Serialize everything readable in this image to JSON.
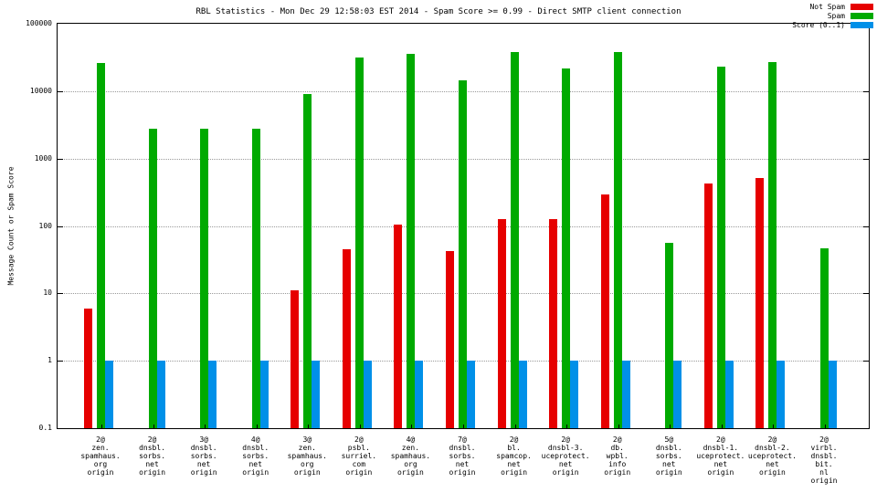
{
  "title": "RBL Statistics - Mon Dec 29 12:58:03 EST 2014 - Spam Score >= 0.99 - Direct SMTP client connection",
  "ylabel": "Message Count or Spam Score",
  "legend": [
    {
      "label": "Not Spam",
      "color": "#e60000"
    },
    {
      "label": "Spam",
      "color": "#00aa00"
    },
    {
      "label": "Score (0..1)",
      "color": "#0090e8"
    }
  ],
  "chart_data": {
    "type": "bar",
    "scale": "log",
    "ylim": [
      0.1,
      100000
    ],
    "y_ticks": [
      100000,
      10000,
      1000,
      100,
      10,
      1,
      0.1
    ],
    "grid": "horizontal-dotted",
    "legend_position": "top-right",
    "xlabel": "",
    "ylabel": "Message Count or Spam Score",
    "categories": [
      [
        "2@",
        "zen.",
        "spamhaus.",
        "org",
        "origin"
      ],
      [
        "2@",
        "dnsbl.",
        "sorbs.",
        "net",
        "origin"
      ],
      [
        "3@",
        "dnsbl.",
        "sorbs.",
        "net",
        "origin"
      ],
      [
        "4@",
        "dnsbl.",
        "sorbs.",
        "net",
        "origin"
      ],
      [
        "3@",
        "zen.",
        "spamhaus.",
        "org",
        "origin"
      ],
      [
        "2@",
        "psbl.",
        "surriel.",
        "com",
        "origin"
      ],
      [
        "4@",
        "zen.",
        "spamhaus.",
        "org",
        "origin"
      ],
      [
        "7@",
        "dnsbl.",
        "sorbs.",
        "net",
        "origin"
      ],
      [
        "2@",
        "bl.",
        "spamcop.",
        "net",
        "origin"
      ],
      [
        "2@",
        "dnsbl-3.",
        "uceprotect.",
        "net",
        "origin"
      ],
      [
        "2@",
        "db.",
        "wpbl.",
        "info",
        "origin"
      ],
      [
        "5@",
        "dnsbl.",
        "sorbs.",
        "net",
        "origin"
      ],
      [
        "2@",
        "dnsbl-1.",
        "uceprotect.",
        "net",
        "origin"
      ],
      [
        "2@",
        "dnsbl-2.",
        "uceprotect.",
        "net",
        "origin"
      ],
      [
        "2@",
        "virbl.",
        "dnsbl.",
        "bit.",
        "nl",
        "origin"
      ]
    ],
    "series": [
      {
        "name": "Not Spam",
        "color": "#e60000",
        "values": [
          6,
          0,
          0,
          0,
          11,
          45,
          105,
          42,
          125,
          125,
          290,
          0,
          420,
          520,
          0
        ]
      },
      {
        "name": "Spam",
        "color": "#00aa00",
        "values": [
          26000,
          2800,
          2800,
          2800,
          9000,
          32000,
          36000,
          14500,
          38000,
          22000,
          38000,
          57,
          23000,
          27000,
          47
        ]
      },
      {
        "name": "Score (0..1)",
        "color": "#0090e8",
        "values": [
          1,
          1,
          1,
          1,
          1,
          1,
          1,
          1,
          1,
          1,
          1,
          1,
          1,
          1,
          1
        ]
      }
    ]
  }
}
